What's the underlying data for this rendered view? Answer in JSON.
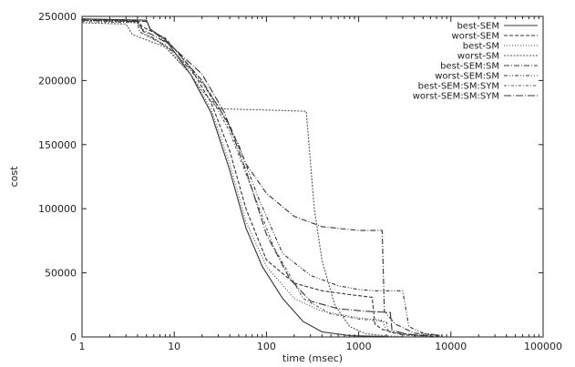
{
  "chart_data": {
    "type": "line",
    "xlabel": "time (msec)",
    "ylabel": "cost",
    "xscale": "log",
    "xlim": [
      1,
      100000
    ],
    "ylim": [
      0,
      250000
    ],
    "xticks": [
      1,
      10,
      100,
      1000,
      10000,
      100000
    ],
    "xtick_labels": [
      "1",
      "10",
      "100",
      "1000",
      "10000",
      "100000"
    ],
    "yticks": [
      0,
      50000,
      100000,
      150000,
      200000,
      250000
    ],
    "ytick_labels": [
      "0",
      "50000",
      "100000",
      "150000",
      "200000",
      "250000"
    ],
    "grid": false,
    "legend_position": "top-right",
    "series": [
      {
        "name": "best-SEM",
        "color": "#333333",
        "dash": "",
        "points": [
          [
            1,
            248000
          ],
          [
            5,
            247000
          ],
          [
            5.5,
            240000
          ],
          [
            8,
            232000
          ],
          [
            15,
            205000
          ],
          [
            25,
            175000
          ],
          [
            40,
            130000
          ],
          [
            60,
            85000
          ],
          [
            90,
            55000
          ],
          [
            150,
            30000
          ],
          [
            250,
            12000
          ],
          [
            400,
            4000
          ],
          [
            800,
            1000
          ],
          [
            2000,
            300
          ]
        ]
      },
      {
        "name": "worst-SEM",
        "color": "#333333",
        "dash": "4 2",
        "points": [
          [
            1,
            248000
          ],
          [
            4,
            247000
          ],
          [
            4.5,
            242000
          ],
          [
            8,
            233000
          ],
          [
            15,
            210000
          ],
          [
            25,
            183000
          ],
          [
            40,
            145000
          ],
          [
            60,
            100000
          ],
          [
            100,
            60000
          ],
          [
            200,
            42000
          ],
          [
            400,
            36000
          ],
          [
            800,
            33000
          ],
          [
            1400,
            31000
          ],
          [
            1500,
            10000
          ],
          [
            1800,
            6000
          ],
          [
            2500,
            3000
          ],
          [
            5000,
            1000
          ],
          [
            8000,
            400
          ]
        ]
      },
      {
        "name": "best-SM",
        "color": "#444444",
        "dash": "1 2",
        "points": [
          [
            1,
            247000
          ],
          [
            4,
            245000
          ],
          [
            4.2,
            238000
          ],
          [
            8,
            228000
          ],
          [
            15,
            205000
          ],
          [
            25,
            178000
          ],
          [
            40,
            135000
          ],
          [
            60,
            90000
          ],
          [
            100,
            55000
          ],
          [
            200,
            30000
          ],
          [
            400,
            20000
          ],
          [
            1000,
            15000
          ],
          [
            1800,
            13000
          ],
          [
            2000,
            5000
          ],
          [
            3000,
            2000
          ],
          [
            5000,
            800
          ]
        ]
      },
      {
        "name": "worst-SM",
        "color": "#555555",
        "dash": "2 1.5",
        "points": [
          [
            1,
            245000
          ],
          [
            3,
            244000
          ],
          [
            3.5,
            236000
          ],
          [
            8,
            226000
          ],
          [
            15,
            205000
          ],
          [
            20,
            192000
          ],
          [
            30,
            178000
          ],
          [
            100,
            177000
          ],
          [
            270,
            176000
          ],
          [
            330,
            100000
          ],
          [
            400,
            60000
          ],
          [
            550,
            25000
          ],
          [
            800,
            8000
          ],
          [
            1200,
            2500
          ],
          [
            2000,
            800
          ],
          [
            3000,
            300
          ]
        ]
      },
      {
        "name": "best-SEM:SM",
        "color": "#333333",
        "dash": "6 2 1 2",
        "points": [
          [
            1,
            248000
          ],
          [
            5,
            246000
          ],
          [
            5.5,
            240000
          ],
          [
            10,
            225000
          ],
          [
            20,
            200000
          ],
          [
            40,
            165000
          ],
          [
            60,
            135000
          ],
          [
            100,
            112000
          ],
          [
            200,
            94000
          ],
          [
            400,
            86000
          ],
          [
            1000,
            83000
          ],
          [
            1800,
            83000
          ],
          [
            1900,
            20000
          ],
          [
            2500,
            10000
          ],
          [
            4000,
            3000
          ],
          [
            8000,
            1000
          ]
        ]
      },
      {
        "name": "worst-SEM:SM",
        "color": "#333333",
        "dash": "4 2 1 2 1 2",
        "points": [
          [
            1,
            247000
          ],
          [
            4,
            246000
          ],
          [
            4.5,
            239000
          ],
          [
            10,
            222000
          ],
          [
            20,
            198000
          ],
          [
            30,
            180000
          ],
          [
            50,
            150000
          ],
          [
            80,
            110000
          ],
          [
            150,
            65000
          ],
          [
            300,
            48000
          ],
          [
            600,
            40000
          ],
          [
            1000,
            37000
          ],
          [
            1500,
            36000
          ],
          [
            3000,
            36000
          ],
          [
            3500,
            8000
          ],
          [
            5000,
            3000
          ],
          [
            8000,
            1000
          ]
        ]
      },
      {
        "name": "best-SEM:SM:SYM",
        "color": "#555555",
        "dash": "3 2 1 2",
        "points": [
          [
            1,
            246000
          ],
          [
            4,
            245000
          ],
          [
            4.2,
            238000
          ],
          [
            9,
            225000
          ],
          [
            20,
            200000
          ],
          [
            40,
            160000
          ],
          [
            70,
            115000
          ],
          [
            120,
            70000
          ],
          [
            250,
            30000
          ],
          [
            500,
            18000
          ],
          [
            1000,
            14000
          ],
          [
            2000,
            12000
          ],
          [
            2100,
            4000
          ],
          [
            3000,
            1500
          ],
          [
            5000,
            500
          ]
        ]
      },
      {
        "name": "worst-SEM:SM:SYM",
        "color": "#333333",
        "dash": "8 2 1 2",
        "points": [
          [
            1,
            247000
          ],
          [
            4,
            246000
          ],
          [
            4.5,
            240000
          ],
          [
            9,
            228000
          ],
          [
            20,
            205000
          ],
          [
            35,
            175000
          ],
          [
            60,
            130000
          ],
          [
            100,
            80000
          ],
          [
            180,
            45000
          ],
          [
            300,
            28000
          ],
          [
            600,
            22000
          ],
          [
            1200,
            20000
          ],
          [
            2200,
            19000
          ],
          [
            2300,
            5000
          ],
          [
            3500,
            2000
          ],
          [
            6000,
            700
          ]
        ]
      }
    ]
  }
}
